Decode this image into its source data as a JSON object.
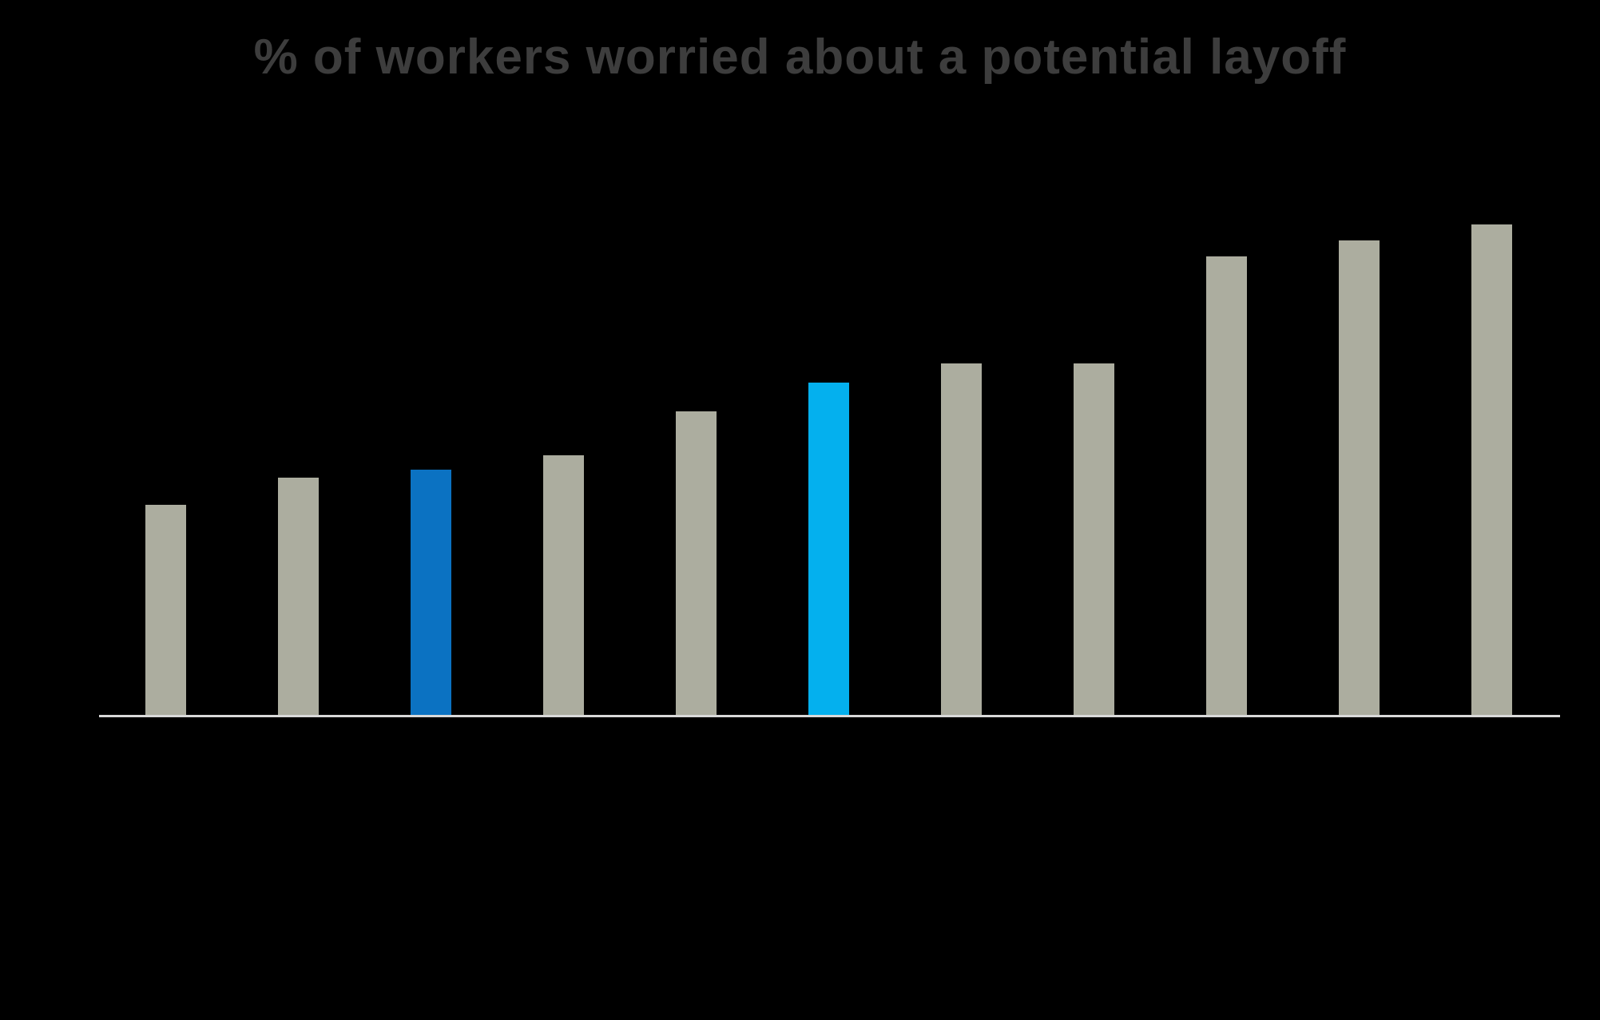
{
  "title": "% of workers worried about a potential layoff",
  "colors": {
    "background": "#000000",
    "bar_default": "#acad9f",
    "bar_highlight_dark": "#0b72c2",
    "bar_highlight_light": "#04b0ee",
    "baseline": "#d9d9d9",
    "title_text": "#3d3d3d"
  },
  "chart_data": {
    "type": "bar",
    "title": "% of workers worried about a potential layoff",
    "categories": [
      "",
      "",
      "",
      "",
      "",
      "",
      "",
      "",
      "",
      "",
      ""
    ],
    "values": [
      13.3,
      15.0,
      15.5,
      16.4,
      19.2,
      21.0,
      22.2,
      22.2,
      29.0,
      30.0,
      31.0
    ],
    "bar_colors": [
      "#acad9f",
      "#acad9f",
      "#0b72c2",
      "#acad9f",
      "#acad9f",
      "#04b0ee",
      "#acad9f",
      "#acad9f",
      "#acad9f",
      "#acad9f",
      "#acad9f"
    ],
    "xlabel": "",
    "ylabel": "",
    "ylim": [
      0,
      31
    ],
    "grid": false,
    "legend": false
  }
}
